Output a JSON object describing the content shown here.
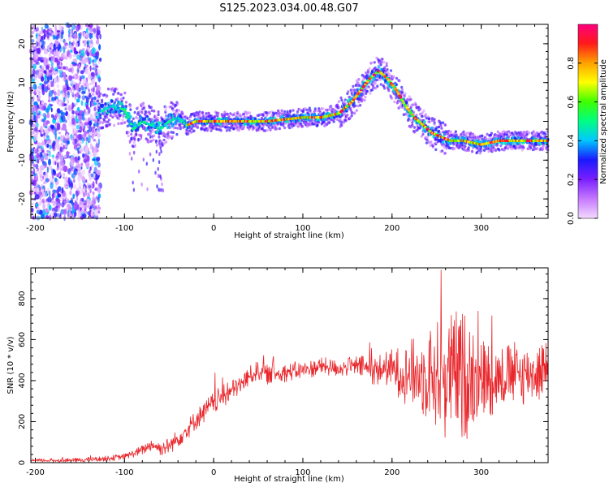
{
  "chart_data": [
    {
      "type": "heatmap",
      "title": "S125.2023.034.00.48.G07",
      "xlabel": "Height of straight line (km)",
      "ylabel": "Frequency (Hz)",
      "xlim": [
        -205,
        375
      ],
      "ylim": [
        -25,
        25
      ],
      "x_ticks": [
        -200,
        -100,
        0,
        100,
        200,
        300
      ],
      "y_ticks": [
        -20,
        -10,
        0,
        10,
        20
      ],
      "colorbar": {
        "label": "Normalized spectral amplitude",
        "range": [
          0,
          1
        ],
        "ticks": [
          0.0,
          0.2,
          0.4,
          0.6,
          0.8
        ],
        "colormap": [
          "#f2d8ff",
          "#c477ff",
          "#7a1fff",
          "#1a1aff",
          "#00c8ff",
          "#00ff80",
          "#40ff00",
          "#ffff00",
          "#ffa000",
          "#ff1a1a",
          "#ff0080"
        ]
      },
      "ridge": {
        "x": [
          -130,
          -115,
          -100,
          -90,
          -80,
          -70,
          -60,
          -50,
          -40,
          -30,
          -20,
          0,
          20,
          40,
          60,
          80,
          100,
          120,
          140,
          155,
          165,
          175,
          185,
          195,
          205,
          215,
          225,
          235,
          245,
          255,
          265,
          280,
          300,
          320,
          340,
          360,
          375
        ],
        "y": [
          2,
          4,
          3,
          -2,
          0,
          -1,
          -2,
          0,
          1,
          -1,
          0,
          0,
          0,
          0,
          0,
          0.5,
          1,
          1,
          2,
          5,
          8,
          11,
          13,
          11,
          8,
          4,
          1,
          -1,
          -3,
          -4,
          -5,
          -5,
          -6,
          -5,
          -5,
          -5,
          -5
        ]
      }
    },
    {
      "type": "line",
      "xlabel": "Height of straight line (km)",
      "ylabel": "SNR (10 * v/v)",
      "xlim": [
        -205,
        375
      ],
      "ylim": [
        0,
        950
      ],
      "x_ticks": [
        -200,
        -100,
        0,
        100,
        200,
        300
      ],
      "y_ticks": [
        0,
        200,
        400,
        600,
        800
      ],
      "color": "#e8262b",
      "envelope": {
        "x": [
          -205,
          -150,
          -120,
          -100,
          -80,
          -70,
          -60,
          -50,
          -40,
          -30,
          -20,
          -10,
          0,
          10,
          20,
          30,
          40,
          50,
          60,
          80,
          100,
          120,
          140,
          160,
          180,
          195,
          210,
          230,
          250,
          260,
          270,
          280,
          290,
          300,
          320,
          340,
          360,
          375
        ],
        "y": [
          10,
          12,
          20,
          30,
          60,
          90,
          70,
          80,
          120,
          160,
          210,
          250,
          290,
          320,
          350,
          380,
          420,
          450,
          430,
          440,
          450,
          470,
          460,
          470,
          450,
          460,
          440,
          430,
          430,
          420,
          430,
          420,
          440,
          410,
          420,
          430,
          440,
          450
        ]
      },
      "noise_amplitude": {
        "x": [
          -205,
          -100,
          -50,
          0,
          50,
          150,
          195,
          230,
          250,
          260,
          280,
          300,
          320,
          375
        ],
        "y": [
          8,
          15,
          45,
          60,
          50,
          45,
          90,
          200,
          280,
          320,
          340,
          220,
          170,
          150
        ]
      },
      "peak_max": 940
    }
  ]
}
